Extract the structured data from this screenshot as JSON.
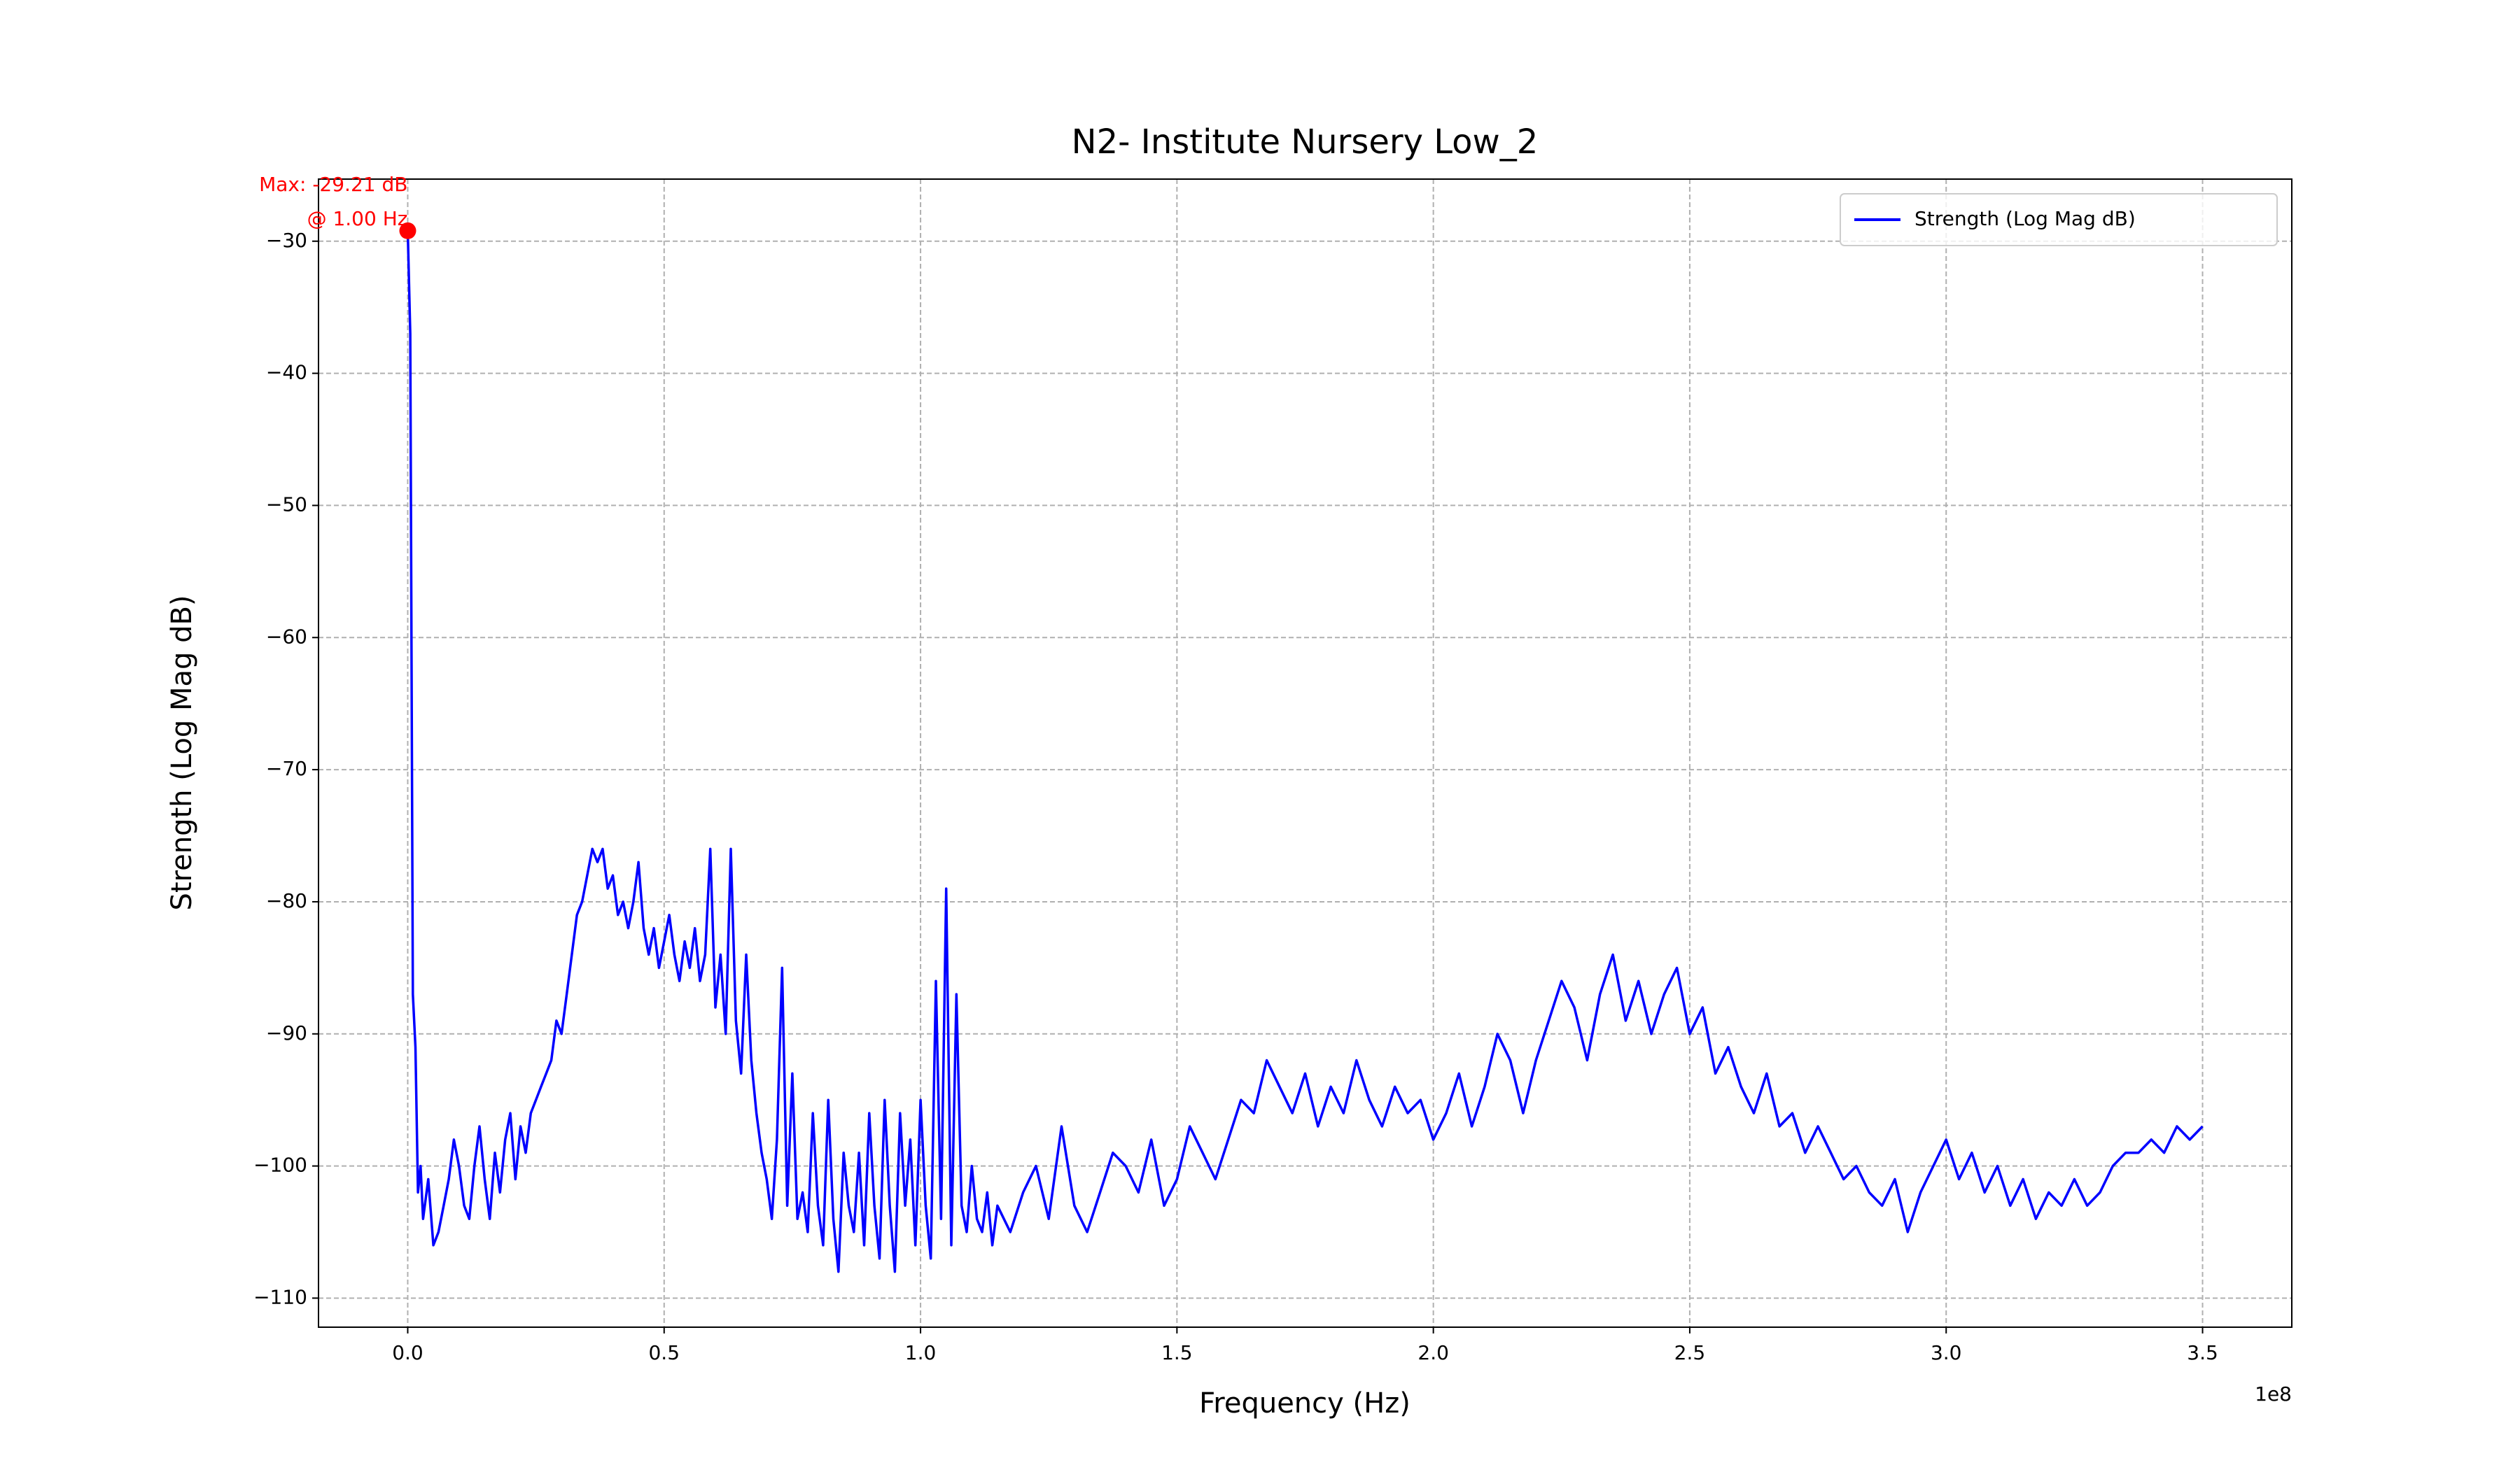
{
  "chart_data": {
    "type": "line",
    "title": "N2- Institute Nursery Low_2",
    "xlabel": "Frequency (Hz)",
    "ylabel": "Strength (Log Mag dB)",
    "x_offset_label": "1e8",
    "xlim": [
      -17400000.0,
      367400000.0
    ],
    "ylim": [
      -112.2,
      -25.3
    ],
    "xticks": [
      {
        "value": 0,
        "label": "0.0"
      },
      {
        "value": 50000000.0,
        "label": "0.5"
      },
      {
        "value": 100000000.0,
        "label": "1.0"
      },
      {
        "value": 150000000.0,
        "label": "1.5"
      },
      {
        "value": 200000000.0,
        "label": "2.0"
      },
      {
        "value": 250000000.0,
        "label": "2.5"
      },
      {
        "value": 300000000.0,
        "label": "3.0"
      },
      {
        "value": 350000000.0,
        "label": "3.5"
      }
    ],
    "yticks": [
      {
        "value": -110,
        "label": "−110"
      },
      {
        "value": -100,
        "label": "−100"
      },
      {
        "value": -90,
        "label": "−90"
      },
      {
        "value": -80,
        "label": "−80"
      },
      {
        "value": -70,
        "label": "−70"
      },
      {
        "value": -60,
        "label": "−60"
      },
      {
        "value": -50,
        "label": "−50"
      },
      {
        "value": -40,
        "label": "−40"
      },
      {
        "value": -30,
        "label": "−30"
      }
    ],
    "grid": true,
    "legend": "upper right",
    "x": [
      1,
      500000.0,
      1000000.0,
      1500000.0,
      2000000.0,
      2500000.0,
      3000000.0,
      4000000.0,
      5000000.0,
      6000000.0,
      7000000.0,
      8000000.0,
      9000000.0,
      10000000.0,
      11000000.0,
      12000000.0,
      13000000.0,
      14000000.0,
      15000000.0,
      16000000.0,
      17000000.0,
      18000000.0,
      19000000.0,
      20000000.0,
      21000000.0,
      22000000.0,
      23000000.0,
      24000000.0,
      25000000.0,
      26000000.0,
      27000000.0,
      28000000.0,
      29000000.0,
      30000000.0,
      31000000.0,
      32000000.0,
      33000000.0,
      34000000.0,
      35000000.0,
      36000000.0,
      37000000.0,
      38000000.0,
      39000000.0,
      40000000.0,
      41000000.0,
      42000000.0,
      43000000.0,
      44000000.0,
      45000000.0,
      46000000.0,
      47000000.0,
      48000000.0,
      49000000.0,
      50000000.0,
      51000000.0,
      52000000.0,
      53000000.0,
      54000000.0,
      55000000.0,
      56000000.0,
      57000000.0,
      58000000.0,
      59000000.0,
      60000000.0,
      61000000.0,
      62000000.0,
      63000000.0,
      64000000.0,
      65000000.0,
      66000000.0,
      67000000.0,
      68000000.0,
      69000000.0,
      70000000.0,
      71000000.0,
      72000000.0,
      73000000.0,
      74000000.0,
      75000000.0,
      76000000.0,
      77000000.0,
      78000000.0,
      79000000.0,
      80000000.0,
      81000000.0,
      82000000.0,
      83000000.0,
      84000000.0,
      85000000.0,
      86000000.0,
      87000000.0,
      88000000.0,
      89000000.0,
      90000000.0,
      91000000.0,
      92000000.0,
      93000000.0,
      94000000.0,
      95000000.0,
      96000000.0,
      97000000.0,
      98000000.0,
      99000000.0,
      100000000.0,
      101000000.0,
      102000000.0,
      103000000.0,
      104000000.0,
      105000000.0,
      106000000.0,
      107000000.0,
      108000000.0,
      109000000.0,
      110000000.0,
      111000000.0,
      112000000.0,
      113000000.0,
      114000000.0,
      115000000.0,
      117500000.0,
      120000000.0,
      122500000.0,
      125000000.0,
      127500000.0,
      130000000.0,
      132500000.0,
      135000000.0,
      137500000.0,
      140000000.0,
      142500000.0,
      145000000.0,
      147500000.0,
      150000000.0,
      152500000.0,
      155000000.0,
      157500000.0,
      160000000.0,
      162500000.0,
      165000000.0,
      167500000.0,
      170000000.0,
      172500000.0,
      175000000.0,
      177500000.0,
      180000000.0,
      182500000.0,
      185000000.0,
      187500000.0,
      190000000.0,
      192500000.0,
      195000000.0,
      197500000.0,
      200000000.0,
      202500000.0,
      205000000.0,
      207500000.0,
      210000000.0,
      212500000.0,
      215000000.0,
      217500000.0,
      220000000.0,
      222500000.0,
      225000000.0,
      227500000.0,
      230000000.0,
      232500000.0,
      235000000.0,
      237500000.0,
      240000000.0,
      242500000.0,
      245000000.0,
      247500000.0,
      250000000.0,
      252500000.0,
      255000000.0,
      257500000.0,
      260000000.0,
      262500000.0,
      265000000.0,
      267500000.0,
      270000000.0,
      272500000.0,
      275000000.0,
      277500000.0,
      280000000.0,
      282500000.0,
      285000000.0,
      287500000.0,
      290000000.0,
      292500000.0,
      295000000.0,
      297500000.0,
      300000000.0,
      302500000.0,
      305000000.0,
      307500000.0,
      310000000.0,
      312500000.0,
      315000000.0,
      317500000.0,
      320000000.0,
      322500000.0,
      325000000.0,
      327500000.0,
      330000000.0,
      332500000.0,
      335000000.0,
      337500000.0,
      340000000.0,
      342500000.0,
      345000000.0,
      347500000.0,
      350000000.0
    ],
    "series": [
      {
        "name": "Strength (Log Mag dB)",
        "color": "#0000ff",
        "values": [
          -29.21,
          -37,
          -87,
          -91,
          -102,
          -100,
          -104,
          -101,
          -106,
          -105,
          -103,
          -101,
          -98,
          -100,
          -103,
          -104,
          -100,
          -97,
          -101,
          -104,
          -99,
          -102,
          -98,
          -96,
          -101,
          -97,
          -99,
          -96,
          -95,
          -94,
          -93,
          -92,
          -89,
          -90,
          -87,
          -84,
          -81,
          -80,
          -78,
          -76,
          -77,
          -76,
          -79,
          -78,
          -81,
          -80,
          -82,
          -80,
          -77,
          -82,
          -84,
          -82,
          -85,
          -83,
          -81,
          -84,
          -86,
          -83,
          -85,
          -82,
          -86,
          -84,
          -76,
          -88,
          -84,
          -90,
          -76,
          -89,
          -93,
          -84,
          -92,
          -96,
          -99,
          -101,
          -104,
          -98,
          -85,
          -103,
          -93,
          -104,
          -102,
          -105,
          -96,
          -103,
          -106,
          -95,
          -104,
          -108,
          -99,
          -103,
          -105,
          -99,
          -106,
          -96,
          -103,
          -107,
          -95,
          -103,
          -108,
          -96,
          -103,
          -98,
          -106,
          -95,
          -103,
          -107,
          -86,
          -104,
          -79,
          -106,
          -87,
          -103,
          -105,
          -100,
          -104,
          -105,
          -102,
          -106,
          -103,
          -105,
          -102,
          -100,
          -104,
          -97,
          -103,
          -105,
          -102,
          -99,
          -100,
          -102,
          -98,
          -103,
          -101,
          -97,
          -99,
          -101,
          -98,
          -95,
          -96,
          -92,
          -94,
          -96,
          -93,
          -97,
          -94,
          -96,
          -92,
          -95,
          -97,
          -94,
          -96,
          -95,
          -98,
          -96,
          -93,
          -97,
          -94,
          -90,
          -92,
          -96,
          -92,
          -89,
          -86,
          -88,
          -92,
          -87,
          -84,
          -89,
          -86,
          -90,
          -87,
          -85,
          -90,
          -88,
          -93,
          -91,
          -94,
          -96,
          -93,
          -97,
          -96,
          -99,
          -97,
          -99,
          -101,
          -100,
          -102,
          -103,
          -101,
          -105,
          -102,
          -100,
          -98,
          -101,
          -99,
          -102,
          -100,
          -103,
          -101,
          -104,
          -102,
          -103,
          -101,
          -103,
          -102,
          -100,
          -99,
          -99,
          -98,
          -99,
          -97,
          -98,
          -97
        ]
      }
    ],
    "annotation": {
      "lines": [
        "Max: -29.21 dB",
        "@ 1.00 Hz"
      ],
      "x": 1,
      "y": -29.21,
      "color": "#ff0000"
    }
  }
}
